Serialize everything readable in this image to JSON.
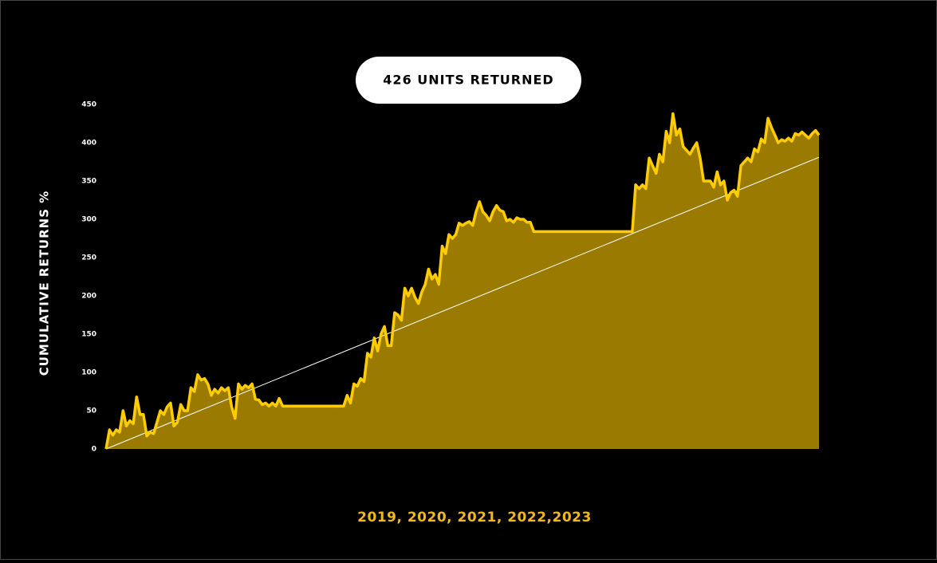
{
  "chart_data": {
    "type": "area",
    "title": "426 UNITS RETURNED",
    "y_label": "CUMULATIVE RETURNS %",
    "x_label": "2019, 2020, 2021, 2022,2023",
    "ylim": [
      0,
      450
    ],
    "yticks": [
      0,
      50,
      100,
      150,
      200,
      250,
      300,
      350,
      400,
      450
    ],
    "line_color": "#ffcc00",
    "fill_color": "#9a7b00",
    "categories": [
      null,
      null,
      null,
      null,
      null,
      null,
      null,
      null,
      null,
      null,
      null,
      null,
      null,
      null,
      null,
      null,
      null,
      null,
      null,
      null,
      null,
      null,
      null,
      null,
      null,
      null,
      null,
      null,
      null,
      null,
      null,
      null,
      null,
      null,
      null,
      null,
      null,
      null,
      null,
      null,
      null,
      null,
      null,
      null,
      null,
      null,
      null,
      null,
      null,
      null,
      null,
      null,
      null,
      null,
      null,
      null,
      null,
      null,
      null,
      null,
      null,
      null,
      null,
      null,
      null,
      null,
      null,
      null,
      null,
      null,
      null,
      null,
      null,
      null,
      null,
      null,
      null,
      null,
      null,
      null,
      null,
      null,
      null,
      null,
      null,
      null,
      null,
      null,
      null,
      null,
      null,
      null,
      null,
      null,
      null,
      null,
      null,
      null,
      null,
      null,
      null,
      null,
      null,
      null,
      null,
      null,
      null,
      null,
      null,
      null,
      null,
      null,
      null,
      null,
      null,
      null,
      null,
      null,
      null,
      null,
      null,
      null,
      null,
      null,
      null,
      null,
      null,
      null,
      null,
      null,
      null,
      null,
      null,
      null,
      null,
      null,
      null,
      null,
      null,
      null,
      null,
      null,
      null,
      null,
      null,
      null,
      null,
      null,
      null,
      null,
      null,
      null,
      null,
      null,
      null,
      null,
      null,
      null,
      null,
      null,
      null,
      null,
      null,
      null,
      null,
      null,
      null,
      null,
      null,
      null,
      null,
      null,
      null,
      null,
      null,
      null,
      null,
      null,
      null,
      null,
      null,
      null,
      null,
      null,
      null,
      null,
      null,
      null,
      null,
      null,
      null,
      null,
      null,
      null,
      null,
      null,
      null,
      null,
      null,
      null,
      null,
      null,
      null,
      null,
      null,
      null,
      null,
      null,
      null,
      null,
      null
    ],
    "values": [
      0,
      25,
      18,
      25,
      22,
      50,
      30,
      37,
      33,
      68,
      45,
      45,
      17,
      22,
      20,
      35,
      50,
      45,
      55,
      60,
      30,
      35,
      58,
      50,
      50,
      80,
      75,
      97,
      90,
      92,
      85,
      70,
      78,
      73,
      80,
      76,
      80,
      55,
      40,
      85,
      78,
      83,
      80,
      85,
      65,
      64,
      58,
      60,
      56,
      60,
      56,
      66,
      56,
      56,
      56,
      56,
      56,
      56,
      56,
      56,
      56,
      56,
      56,
      56,
      56,
      56,
      56,
      56,
      56,
      56,
      56,
      70,
      60,
      85,
      82,
      92,
      88,
      125,
      120,
      145,
      128,
      150,
      160,
      135,
      135,
      178,
      175,
      168,
      210,
      200,
      210,
      198,
      190,
      205,
      215,
      235,
      222,
      228,
      215,
      265,
      255,
      280,
      275,
      280,
      295,
      292,
      295,
      297,
      292,
      310,
      323,
      310,
      305,
      298,
      310,
      318,
      312,
      310,
      298,
      300,
      296,
      302,
      300,
      300,
      296,
      296,
      284,
      284,
      284,
      284,
      284,
      284,
      284,
      284,
      284,
      284,
      284,
      284,
      284,
      284,
      284,
      284,
      284,
      284,
      284,
      284,
      284,
      284,
      284,
      284,
      284,
      284,
      284,
      284,
      284,
      284,
      345,
      340,
      345,
      340,
      380,
      370,
      360,
      385,
      375,
      415,
      400,
      438,
      410,
      418,
      395,
      390,
      385,
      393,
      400,
      380,
      350,
      350,
      350,
      342,
      362,
      345,
      350,
      325,
      335,
      338,
      330,
      370,
      375,
      380,
      375,
      392,
      388,
      405,
      400,
      432,
      420,
      410,
      400,
      404,
      402,
      406,
      402,
      412,
      410,
      414,
      410,
      406,
      412,
      416,
      410
    ],
    "trend": {
      "values": [
        0,
        381
      ],
      "color": "#ffffff"
    }
  }
}
